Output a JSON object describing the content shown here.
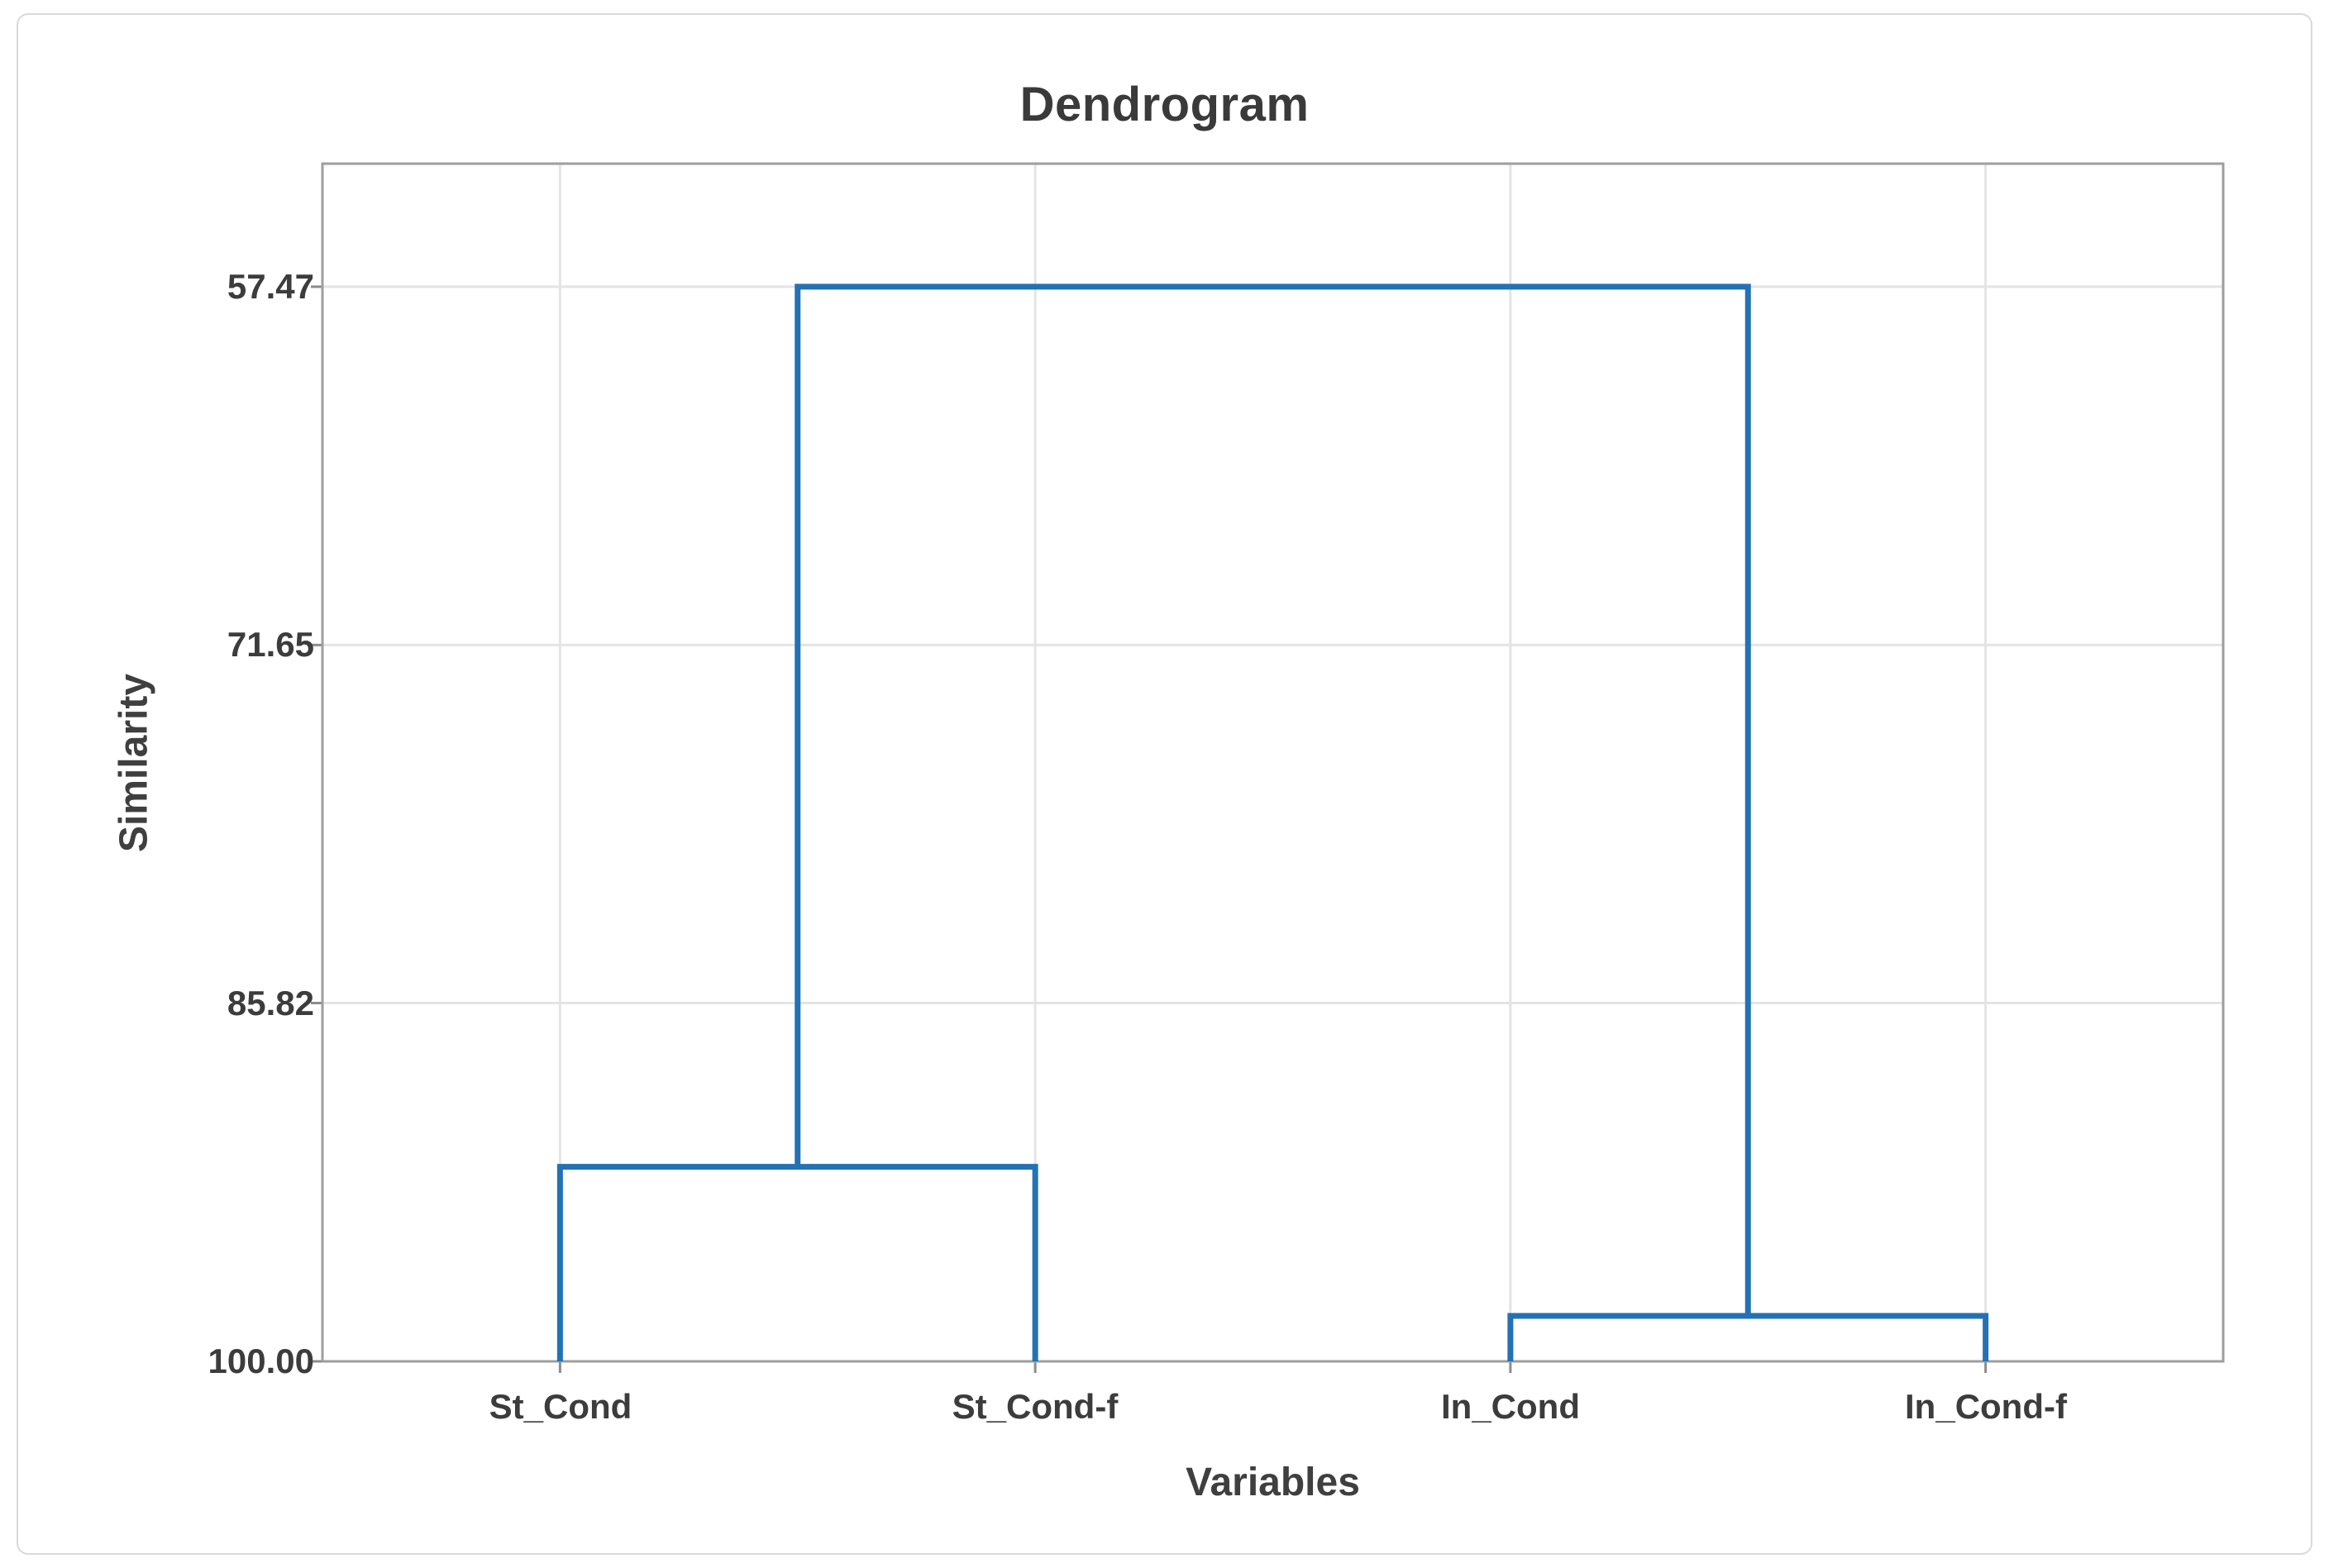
{
  "figure": {
    "title": "Dendrogram"
  },
  "chart_data": {
    "type": "dendrogram",
    "title": "Dendrogram",
    "xlabel": "Variables",
    "ylabel": "Similarity",
    "y_inverted": true,
    "ylim": [
      52.6,
      100.0
    ],
    "y_ticks": [
      "57.47",
      "71.65",
      "85.82",
      "100.00"
    ],
    "y_tick_values": [
      57.47,
      71.65,
      85.82,
      100.0
    ],
    "leaves": [
      "St_Cond",
      "St_Cond-f",
      "In_Cond",
      "In_Cond-f"
    ],
    "merges": [
      {
        "children": [
          0,
          1
        ],
        "similarity": 92.3
      },
      {
        "children": [
          2,
          3
        ],
        "similarity": 98.2
      },
      {
        "children": [
          "m0",
          "m1"
        ],
        "similarity": 57.47
      }
    ],
    "grid": true,
    "legend": false
  },
  "colors": {
    "line": "#2272B4",
    "text": "#3a3a3a",
    "grid": "#e4e4e4",
    "plot_border": "#9e9e9e",
    "tick_mark": "#8c8c8c",
    "frame_border": "#d9d9d9"
  }
}
